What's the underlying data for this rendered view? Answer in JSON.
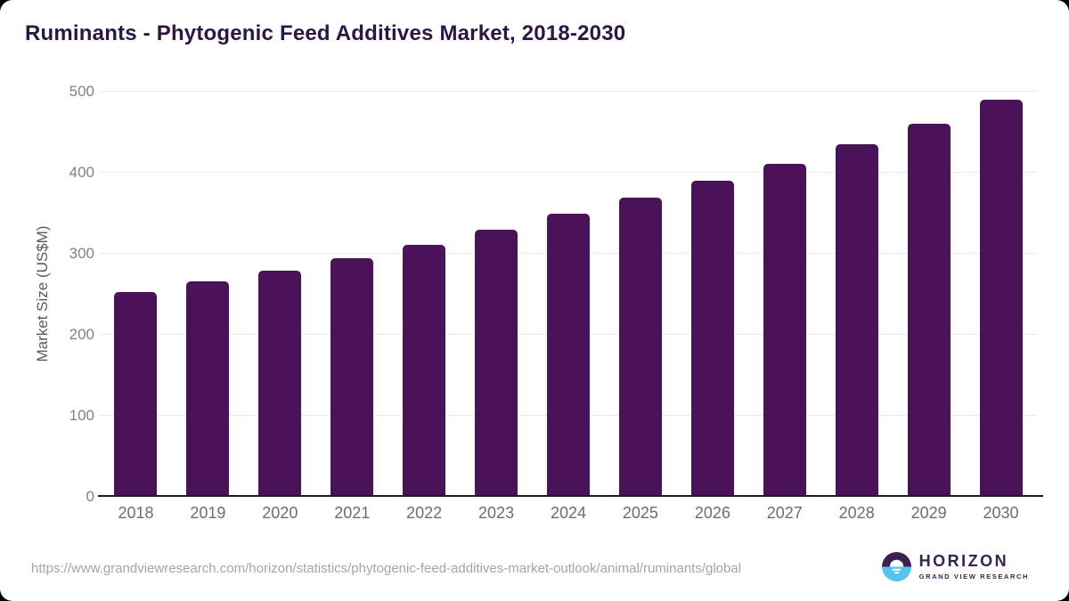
{
  "page": {
    "background": "#000000",
    "card_background": "#ffffff"
  },
  "chart_data": {
    "type": "bar",
    "title": "Ruminants - Phytogenic Feed Additives Market, 2018-2030",
    "categories": [
      "2018",
      "2019",
      "2020",
      "2021",
      "2022",
      "2023",
      "2024",
      "2025",
      "2026",
      "2027",
      "2028",
      "2029",
      "2030"
    ],
    "values": [
      253,
      266,
      279,
      295,
      311,
      330,
      349,
      369,
      390,
      411,
      435,
      461,
      490
    ],
    "xlabel": "",
    "ylabel": "Market Size (US$M)",
    "ylim": [
      0,
      500
    ],
    "yticks": [
      0,
      100,
      200,
      300,
      400,
      500
    ],
    "grid": true,
    "legend_position": "none",
    "bar_color": "#491259"
  },
  "footer": {
    "source_url": "https://www.grandviewresearch.com/horizon/statistics/phytogenic-feed-additives-market-outlook/animal/ruminants/global",
    "logo": {
      "name": "HORIZON",
      "tagline": "GRAND VIEW RESEARCH"
    }
  },
  "colors": {
    "bar": "#491259",
    "title": "#2d1644",
    "ytick": "#818181",
    "xtick": "#6d6d6d",
    "ylabel": "#5a5a5a",
    "grid": "#e9e9e9",
    "axis": "#1c1c1c",
    "url": "#a5a5a5",
    "logo_purple": "#3b2150",
    "logo_blue": "#59c3f0"
  }
}
